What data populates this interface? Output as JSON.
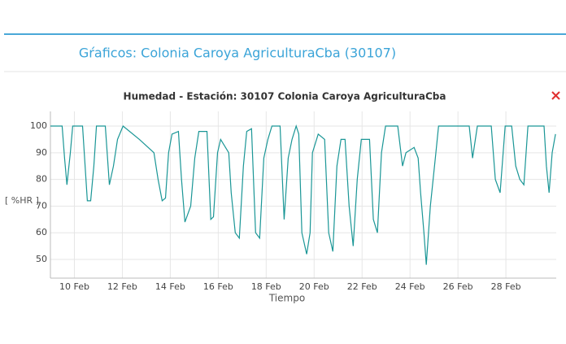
{
  "header": {
    "title": "Gŕaficos: Colonia Caroya AgriculturaCba (30107)"
  },
  "chart_data": {
    "type": "line",
    "title": "Humedad - Estación: 30107 Colonia Caroya AgriculturaCba",
    "xlabel": "Tiempo",
    "ylabel": "[ %HR ]",
    "x": [
      9.0,
      9.49,
      9.59,
      9.69,
      9.83,
      9.93,
      10.34,
      10.54,
      10.68,
      10.81,
      10.92,
      11.29,
      11.46,
      11.63,
      11.8,
      12.03,
      12.71,
      13.32,
      13.49,
      13.66,
      13.8,
      13.93,
      14.07,
      14.34,
      14.47,
      14.61,
      14.85,
      15.02,
      15.19,
      15.53,
      15.69,
      15.8,
      15.97,
      16.1,
      16.44,
      16.54,
      16.71,
      16.88,
      17.05,
      17.19,
      17.39,
      17.56,
      17.73,
      17.9,
      18.07,
      18.24,
      18.58,
      18.75,
      18.92,
      19.08,
      19.25,
      19.36,
      19.49,
      19.69,
      19.83,
      19.93,
      20.17,
      20.44,
      20.61,
      20.78,
      20.95,
      21.12,
      21.29,
      21.46,
      21.63,
      21.8,
      21.97,
      22.31,
      22.47,
      22.64,
      22.81,
      22.98,
      23.49,
      23.69,
      23.83,
      24.17,
      24.34,
      24.44,
      24.58,
      24.68,
      24.85,
      25.08,
      25.19,
      26.47,
      26.61,
      26.81,
      27.39,
      27.56,
      27.76,
      27.97,
      28.24,
      28.41,
      28.58,
      28.75,
      28.92,
      29.59,
      29.69,
      29.8,
      29.93,
      30.07
    ],
    "series": [
      {
        "color": "#1a9696",
        "values": [
          100,
          100,
          88,
          78,
          90,
          100,
          100,
          72,
          72,
          85,
          100,
          100,
          78,
          85,
          95,
          100,
          95,
          90,
          80,
          72,
          73,
          90,
          97,
          98,
          80,
          64,
          70,
          88,
          98,
          98,
          65,
          66,
          90,
          95,
          90,
          75,
          60,
          58,
          85,
          98,
          99,
          60,
          58,
          88,
          95,
          100,
          100,
          65,
          88,
          95,
          100,
          97,
          60,
          52,
          60,
          90,
          97,
          95,
          60,
          53,
          85,
          95,
          95,
          70,
          55,
          80,
          95,
          95,
          65,
          60,
          90,
          100,
          100,
          85,
          90,
          92,
          88,
          75,
          60,
          48,
          70,
          90,
          100,
          100,
          88,
          100,
          100,
          80,
          75,
          100,
          100,
          85,
          80,
          78,
          100,
          100,
          85,
          75,
          90,
          97
        ]
      }
    ],
    "xlim": [
      9.0,
      30.1
    ],
    "ylim": [
      43,
      105.5
    ],
    "xticks": [
      {
        "value": 10,
        "label": "10 Feb"
      },
      {
        "value": 12,
        "label": "12 Feb"
      },
      {
        "value": 14,
        "label": "14 Feb"
      },
      {
        "value": 16,
        "label": "16 Feb"
      },
      {
        "value": 18,
        "label": "18 Feb"
      },
      {
        "value": 20,
        "label": "20 Feb"
      },
      {
        "value": 22,
        "label": "22 Feb"
      },
      {
        "value": 24,
        "label": "24 Feb"
      },
      {
        "value": 26,
        "label": "26 Feb"
      },
      {
        "value": 28,
        "label": "28 Feb"
      }
    ],
    "yticks": [
      50,
      60,
      70,
      80,
      90,
      100
    ],
    "grid": true
  }
}
